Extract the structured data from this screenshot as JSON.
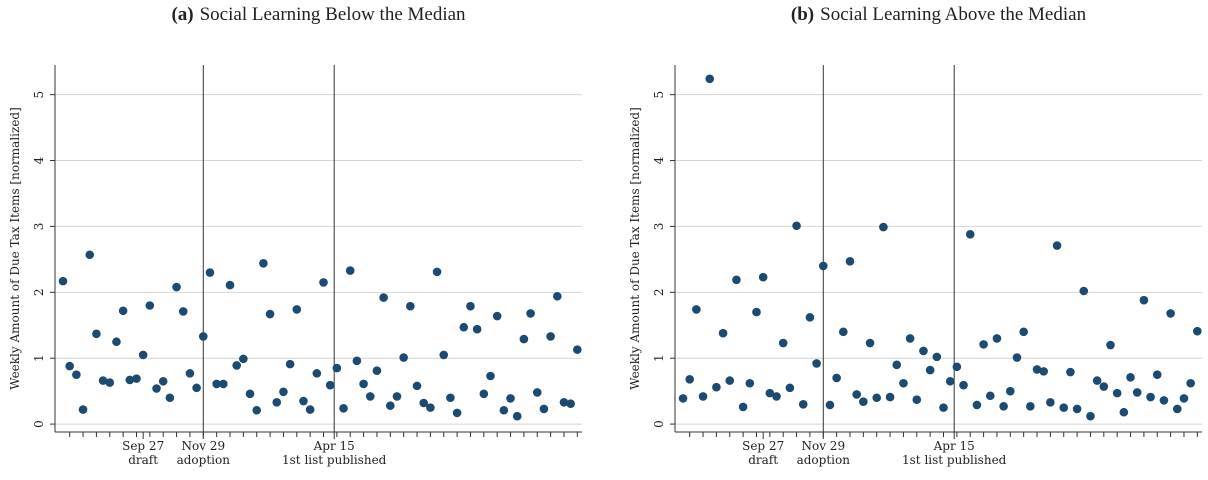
{
  "chart_data": [
    {
      "type": "scatter",
      "panel_label": "(a)",
      "title": "Social Learning Below the Median",
      "y_label": "Weekly Amount of Due Tax Items [normalized]",
      "color": "#1c4a70",
      "x": [
        0,
        1,
        2,
        3,
        4,
        5,
        6,
        7,
        8,
        9,
        10,
        11,
        12,
        13,
        14,
        15,
        16,
        17,
        18,
        19,
        20,
        21,
        22,
        23,
        24,
        25,
        26,
        27,
        28,
        29,
        30,
        31,
        32,
        33,
        34,
        35,
        36,
        37,
        38,
        39,
        40,
        41,
        42,
        43,
        44,
        45,
        46,
        47,
        48,
        49,
        50,
        51,
        52,
        53,
        54,
        55,
        56,
        57,
        58,
        59,
        60,
        61,
        62,
        63,
        64,
        65,
        66,
        67,
        68,
        69,
        70,
        71,
        72,
        73,
        74,
        75,
        76,
        77
      ],
      "values": [
        2.17,
        0.88,
        0.75,
        0.22,
        2.57,
        1.37,
        0.66,
        0.63,
        1.25,
        1.72,
        0.67,
        0.69,
        1.05,
        1.8,
        0.54,
        0.65,
        0.4,
        2.08,
        1.71,
        0.77,
        0.55,
        1.33,
        2.3,
        0.61,
        0.61,
        2.11,
        0.89,
        0.99,
        0.46,
        0.21,
        2.44,
        1.67,
        0.33,
        0.49,
        0.91,
        1.74,
        0.35,
        0.22,
        0.77,
        2.15,
        0.59,
        0.85,
        0.24,
        2.33,
        0.96,
        0.61,
        0.42,
        0.81,
        1.92,
        0.28,
        0.42,
        1.01,
        1.79,
        0.58,
        0.32,
        0.25,
        2.31,
        1.05,
        0.4,
        0.17,
        1.47,
        1.79,
        1.44,
        0.46,
        0.73,
        1.64,
        0.21,
        0.39,
        0.12,
        1.29,
        1.68,
        0.48,
        0.23,
        1.33,
        1.94,
        0.33,
        0.31,
        1.13
      ],
      "xlim": [
        -1.2,
        77.7
      ],
      "ylim": [
        -0.12,
        5.45
      ],
      "yticks": [
        0,
        1,
        2,
        3,
        4,
        5
      ],
      "grid": true,
      "xticks": [
        {
          "value": 12,
          "label": "Sep 27"
        },
        {
          "value": 21,
          "label": "Nov 29"
        },
        {
          "value": 40.6,
          "label": "Apr 15"
        }
      ],
      "minor_xticks": [
        1,
        3,
        5,
        7,
        9,
        11,
        13,
        15,
        17,
        19,
        21,
        23,
        25,
        27,
        29,
        31,
        33,
        35,
        37,
        39,
        41,
        43,
        45,
        47,
        49,
        51,
        53,
        55,
        57,
        59,
        61,
        63,
        65,
        67,
        69,
        71,
        73,
        75,
        77
      ],
      "events": [
        {
          "value": 12,
          "label": "draft"
        },
        {
          "value": 21,
          "label": "adoption"
        },
        {
          "value": 40.6,
          "label": "1st list published"
        }
      ],
      "vlines": [
        21,
        40.6
      ]
    },
    {
      "type": "scatter",
      "panel_label": "(b)",
      "title": "Social Learning Above the Median",
      "y_label": "Weekly Amount of Due Tax Items [normalized]",
      "color": "#1c4a70",
      "x": [
        0,
        1,
        2,
        3,
        4,
        5,
        6,
        7,
        8,
        9,
        10,
        11,
        12,
        13,
        14,
        15,
        16,
        17,
        18,
        19,
        20,
        21,
        22,
        23,
        24,
        25,
        26,
        27,
        28,
        29,
        30,
        31,
        32,
        33,
        34,
        35,
        36,
        37,
        38,
        39,
        40,
        41,
        42,
        43,
        44,
        45,
        46,
        47,
        48,
        49,
        50,
        51,
        52,
        53,
        54,
        55,
        56,
        57,
        58,
        59,
        60,
        61,
        62,
        63,
        64,
        65,
        66,
        67,
        68,
        69,
        70,
        71,
        72,
        73,
        74,
        75,
        76,
        77
      ],
      "values": [
        0.39,
        0.68,
        1.74,
        0.42,
        5.24,
        0.56,
        1.38,
        0.66,
        2.19,
        0.26,
        0.62,
        1.7,
        2.23,
        0.47,
        0.42,
        1.23,
        0.55,
        3.01,
        0.3,
        1.62,
        0.92,
        2.4,
        0.29,
        0.7,
        1.4,
        2.47,
        0.45,
        0.34,
        1.23,
        0.4,
        2.99,
        0.41,
        0.9,
        0.62,
        1.3,
        0.37,
        1.11,
        0.82,
        1.02,
        0.25,
        0.65,
        0.87,
        0.59,
        2.88,
        0.29,
        1.21,
        0.43,
        1.3,
        0.27,
        0.5,
        1.01,
        1.4,
        0.27,
        0.83,
        0.8,
        0.33,
        2.71,
        0.25,
        0.79,
        0.23,
        2.02,
        0.12,
        0.66,
        0.57,
        1.2,
        0.47,
        0.18,
        0.71,
        0.48,
        1.88,
        0.41,
        0.75,
        0.36,
        1.68,
        0.23,
        0.39,
        0.62,
        1.41
      ],
      "xlim": [
        -1.2,
        77.7
      ],
      "ylim": [
        -0.12,
        5.45
      ],
      "yticks": [
        0,
        1,
        2,
        3,
        4,
        5
      ],
      "grid": true,
      "xticks": [
        {
          "value": 12,
          "label": "Sep 27"
        },
        {
          "value": 21,
          "label": "Nov 29"
        },
        {
          "value": 40.6,
          "label": "Apr 15"
        }
      ],
      "minor_xticks": [
        1,
        3,
        5,
        7,
        9,
        11,
        13,
        15,
        17,
        19,
        21,
        23,
        25,
        27,
        29,
        31,
        33,
        35,
        37,
        39,
        41,
        43,
        45,
        47,
        49,
        51,
        53,
        55,
        57,
        59,
        61,
        63,
        65,
        67,
        69,
        71,
        73,
        75,
        77
      ],
      "events": [
        {
          "value": 12,
          "label": "draft"
        },
        {
          "value": 21,
          "label": "adoption"
        },
        {
          "value": 40.6,
          "label": "1st list published"
        }
      ],
      "vlines": [
        21,
        40.6
      ]
    }
  ]
}
